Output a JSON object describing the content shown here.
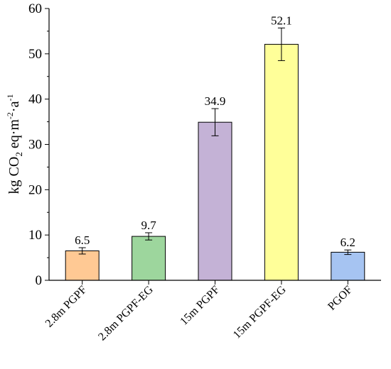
{
  "chart_data": {
    "type": "bar",
    "categories": [
      "2.8m PGPF",
      "2.8m PGPF-EG",
      "15m PGPF",
      "15m PGPF-EG",
      "PGOF"
    ],
    "values": [
      6.5,
      9.7,
      34.9,
      52.1,
      6.2
    ],
    "errors": [
      0.7,
      0.8,
      3.0,
      3.6,
      0.5
    ],
    "data_labels": [
      "6.5",
      "9.7",
      "34.9",
      "52.1",
      "6.2"
    ],
    "colors": [
      "#FFC994",
      "#9DD69D",
      "#C4B2D6",
      "#FFFF99",
      "#A6C4F2"
    ],
    "ylabel": {
      "prefix": "kg CO",
      "sub": "2",
      "mid1": " eq·m",
      "sup1": "-2",
      "mid2": "·a",
      "sup2": "-1"
    },
    "ylim": [
      0,
      60
    ],
    "yticks": [
      0,
      10,
      20,
      30,
      40,
      50,
      60
    ],
    "ytick_labels": [
      "0",
      "10",
      "20",
      "30",
      "40",
      "50",
      "60"
    ],
    "grid": false,
    "legend": "none"
  }
}
